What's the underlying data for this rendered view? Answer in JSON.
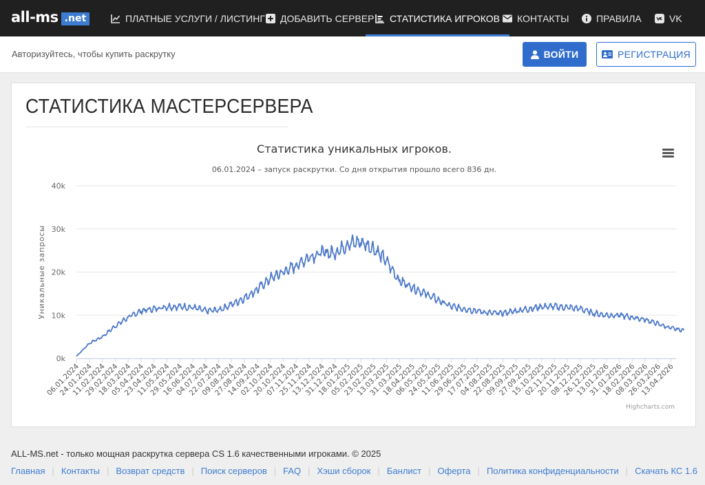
{
  "brand": {
    "name": "all-ms",
    "badge": ".net"
  },
  "nav": [
    {
      "label": "ПЛАТНЫЕ УСЛУГИ / ЛИСТИНГ",
      "icon": "chart-line-icon",
      "active": false
    },
    {
      "label": "ДОБАВИТЬ СЕРВЕР",
      "icon": "plus-square-icon",
      "active": false
    },
    {
      "label": "СТАТИСТИКА ИГРОКОВ",
      "icon": "chart-bar-icon",
      "active": true
    },
    {
      "label": "КОНТАКТЫ",
      "icon": "envelope-icon",
      "active": false
    },
    {
      "label": "ПРАВИЛА",
      "icon": "info-circle-icon",
      "active": false
    },
    {
      "label": "VK",
      "icon": "vk-icon",
      "active": false
    }
  ],
  "subbar": {
    "auth_text": "Авторизуйтесь, чтобы купить раскрутку",
    "login_label": "ВОЙТИ",
    "register_label": "РЕГИСТРАЦИЯ"
  },
  "page": {
    "title": "СТАТИСТИКА МАСТЕРСЕРВЕРА"
  },
  "chart_data": {
    "type": "line",
    "title": "Статистика уникальных игроков.",
    "subtitle": "06.01.2024 – запуск раскрутки. Со дня открытия прошло всего 836 дн.",
    "ylabel": "Уникальные запросы",
    "xlabel": "",
    "ylim": [
      0,
      40000
    ],
    "y_ticks": [
      "0k",
      "10k",
      "20k",
      "30k",
      "40k"
    ],
    "grid": true,
    "legend": "none",
    "credits": "Highcharts.com",
    "color": "#4e79c9",
    "x_labels": [
      "06.01.2024",
      "24.01.2024",
      "11.02.2024",
      "29.02.2024",
      "18.03.2024",
      "05.04.2024",
      "23.04.2024",
      "11.05.2024",
      "29.05.2024",
      "16.06.2024",
      "04.07.2024",
      "22.07.2024",
      "09.08.2024",
      "27.08.2024",
      "14.09.2024",
      "02.10.2024",
      "20.10.2024",
      "07.11.2024",
      "25.11.2024",
      "13.12.2024",
      "31.12.2024",
      "18.01.2025",
      "05.02.2025",
      "23.02.2025",
      "13.03.2025",
      "31.03.2025",
      "18.04.2025",
      "06.05.2025",
      "24.05.2025",
      "11.06.2025",
      "29.06.2025",
      "17.07.2025",
      "04.08.2025",
      "22.08.2025",
      "09.09.2025",
      "27.09.2025",
      "15.10.2025",
      "02.11.2025",
      "20.11.2025",
      "08.12.2025",
      "26.12.2025",
      "13.01.2026",
      "31.01.2026",
      "18.02.2026",
      "08.03.2026",
      "26.03.2026",
      "13.04.2026"
    ],
    "series": [
      {
        "x": [
          "06.01.2024",
          "24.01.2024",
          "11.02.2024",
          "29.02.2024",
          "18.03.2024",
          "05.04.2024",
          "23.04.2024",
          "11.05.2024",
          "29.05.2024",
          "16.06.2024",
          "04.07.2024",
          "22.07.2024",
          "09.08.2024",
          "27.08.2024",
          "14.09.2024",
          "02.10.2024",
          "20.10.2024",
          "07.11.2024",
          "25.11.2024",
          "13.12.2024",
          "31.12.2024",
          "18.01.2025",
          "05.02.2025",
          "23.02.2025",
          "13.03.2025",
          "31.03.2025",
          "18.04.2025",
          "06.05.2025",
          "24.05.2025",
          "11.06.2025",
          "29.06.2025",
          "17.07.2025",
          "04.08.2025",
          "22.08.2025",
          "09.09.2025",
          "27.09.2025",
          "15.10.2025",
          "02.11.2025",
          "20.11.2025",
          "08.12.2025",
          "26.12.2025",
          "13.01.2026",
          "31.01.2026",
          "18.02.2026",
          "08.03.2026",
          "26.03.2026",
          "13.04.2026",
          "20.04.2026"
        ],
        "values": [
          500,
          3500,
          5000,
          7500,
          9500,
          11000,
          11500,
          12000,
          12000,
          11800,
          11000,
          11200,
          12500,
          14000,
          16000,
          18500,
          20000,
          21500,
          23500,
          24500,
          24500,
          26500,
          27000,
          25500,
          22500,
          18000,
          16500,
          15000,
          13500,
          12000,
          11500,
          11000,
          10500,
          10500,
          11000,
          11500,
          12000,
          12000,
          11800,
          11500,
          10500,
          10000,
          10000,
          9500,
          9000,
          8000,
          7000,
          6500
        ]
      }
    ]
  },
  "footer": {
    "text": "ALL-MS.net - только мощная раскрутка сервера CS 1.6 качественными игроками. © 2025",
    "links": [
      "Главная",
      "Контакты",
      "Возврат средств",
      "Поиск серверов",
      "FAQ",
      "Хэши сборок",
      "Банлист",
      "Оферта",
      "Политика конфиденциальности",
      "Скачать КС 1.6"
    ]
  }
}
